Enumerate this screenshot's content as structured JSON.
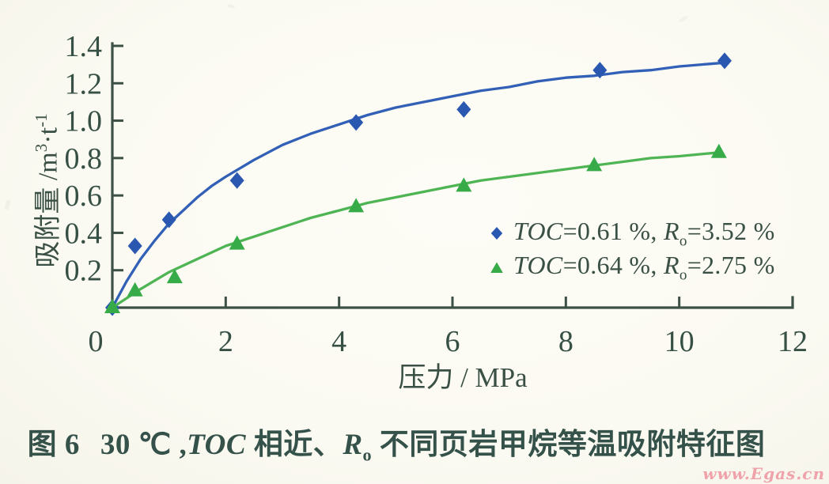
{
  "chart_data": {
    "type": "scatter-line",
    "title": "",
    "xlabel": "压力 / MPa",
    "ylabel_parts": {
      "base1": "吸附量 /m",
      "sup1": "3",
      "base2": "·t",
      "sup2": "-1"
    },
    "xlim": [
      0,
      12
    ],
    "ylim": [
      0,
      1.4
    ],
    "grid": false,
    "legend_position": "inside-right",
    "axis_color": "#3c5046",
    "tick_label_color": "#375045",
    "xticks": [
      0,
      2,
      4,
      6,
      8,
      10,
      12
    ],
    "xtick_labels": [
      "0",
      "2",
      "4",
      "6",
      "8",
      "10",
      "12"
    ],
    "yticks": [
      0.2,
      0.4,
      0.6,
      0.8,
      1.0,
      1.2,
      1.4
    ],
    "ytick_labels": [
      "0.2",
      "0.4",
      "0.6",
      "0.8",
      "1.0",
      "1.2",
      "1.4"
    ],
    "series": [
      {
        "name": "TOC=0.61 %, Ro=3.52 %",
        "marker": "diamond",
        "marker_color": "#2a58b0",
        "line_color": "#3160b6",
        "points": [
          [
            0,
            0
          ],
          [
            0.4,
            0.33
          ],
          [
            1.0,
            0.47
          ],
          [
            2.2,
            0.68
          ],
          [
            4.3,
            0.99
          ],
          [
            6.2,
            1.06
          ],
          [
            8.6,
            1.27
          ],
          [
            10.8,
            1.32
          ]
        ],
        "curve": [
          [
            0,
            0
          ],
          [
            0.25,
            0.14
          ],
          [
            0.5,
            0.26
          ],
          [
            0.75,
            0.36
          ],
          [
            1,
            0.45
          ],
          [
            1.25,
            0.52
          ],
          [
            1.5,
            0.59
          ],
          [
            1.75,
            0.65
          ],
          [
            2,
            0.7
          ],
          [
            2.5,
            0.79
          ],
          [
            3,
            0.87
          ],
          [
            3.5,
            0.93
          ],
          [
            4,
            0.98
          ],
          [
            4.5,
            1.03
          ],
          [
            5,
            1.07
          ],
          [
            5.5,
            1.1
          ],
          [
            6,
            1.13
          ],
          [
            6.5,
            1.16
          ],
          [
            7,
            1.18
          ],
          [
            7.5,
            1.21
          ],
          [
            8,
            1.23
          ],
          [
            8.5,
            1.24
          ],
          [
            9,
            1.26
          ],
          [
            9.5,
            1.27
          ],
          [
            10,
            1.29
          ],
          [
            10.4,
            1.3
          ],
          [
            10.8,
            1.31
          ]
        ],
        "legend": {
          "toc": "TOC",
          "eq1": "=0.61 %, ",
          "r": "R",
          "rsub": "o",
          "eq2": "=3.52 %"
        }
      },
      {
        "name": "TOC=0.64 %, Ro=2.75 %",
        "marker": "triangle",
        "marker_color": "#36ab47",
        "line_color": "#4fb554",
        "points": [
          [
            0,
            0
          ],
          [
            0.4,
            0.09
          ],
          [
            1.1,
            0.16
          ],
          [
            2.2,
            0.34
          ],
          [
            4.3,
            0.54
          ],
          [
            6.2,
            0.65
          ],
          [
            8.5,
            0.76
          ],
          [
            10.7,
            0.83
          ]
        ],
        "curve": [
          [
            0,
            0
          ],
          [
            0.5,
            0.1
          ],
          [
            1,
            0.19
          ],
          [
            1.5,
            0.26
          ],
          [
            2,
            0.33
          ],
          [
            2.5,
            0.38
          ],
          [
            3,
            0.43
          ],
          [
            3.5,
            0.48
          ],
          [
            4,
            0.52
          ],
          [
            4.5,
            0.56
          ],
          [
            5,
            0.59
          ],
          [
            5.5,
            0.62
          ],
          [
            6,
            0.65
          ],
          [
            6.5,
            0.68
          ],
          [
            7,
            0.7
          ],
          [
            7.5,
            0.72
          ],
          [
            8,
            0.74
          ],
          [
            8.5,
            0.76
          ],
          [
            9,
            0.78
          ],
          [
            9.5,
            0.8
          ],
          [
            10,
            0.81
          ],
          [
            10.35,
            0.82
          ],
          [
            10.7,
            0.83
          ]
        ],
        "legend": {
          "toc": "TOC",
          "eq1": "=0.64 %, ",
          "r": "R",
          "rsub": "o",
          "eq2": "=2.75 %"
        }
      }
    ]
  },
  "caption": {
    "fig": "图 6",
    "temp": "30 ℃ ,",
    "toc": "TOC",
    "mid": " 相近、",
    "r": "R",
    "rsub": "o",
    "rest": " 不同页岩甲烷等温吸附特征图"
  },
  "watermark": {
    "text": "www.Egas.cn",
    "color": "#f0a2aa"
  }
}
